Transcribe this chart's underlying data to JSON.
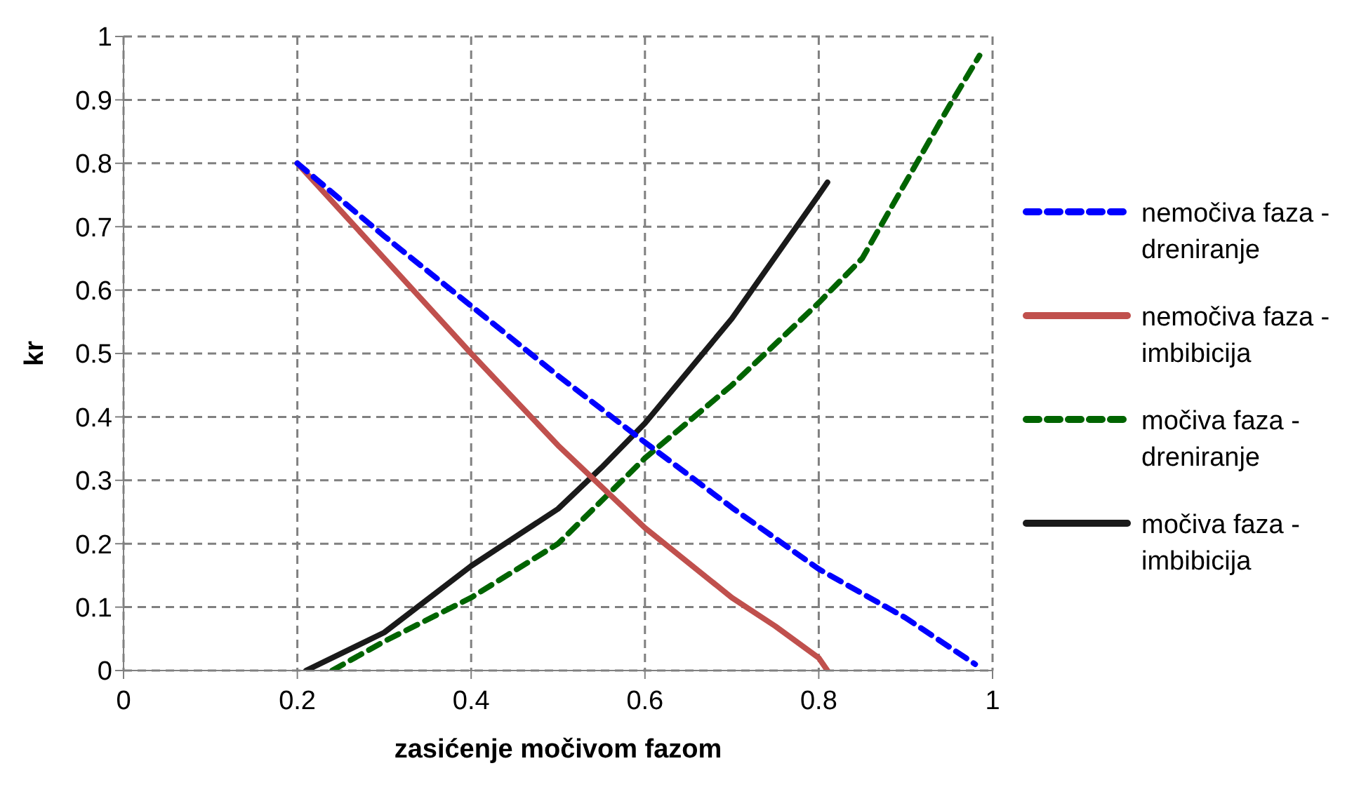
{
  "chart_data": {
    "type": "line",
    "xlabel": "zasićenje močivom fazom",
    "ylabel": "kr",
    "xlim": [
      0,
      1
    ],
    "xticks": [
      0,
      0.2,
      0.4,
      0.6,
      0.8,
      1
    ],
    "ylim": [
      0,
      1
    ],
    "yticks": [
      0,
      0.1,
      0.2,
      0.3,
      0.4,
      0.5,
      0.6,
      0.7,
      0.8,
      0.9,
      1
    ],
    "grid": true,
    "legend": "right",
    "marker": "none",
    "series": [
      {
        "name": "nemočiva faza - dreniranje",
        "color": "#0000ff",
        "line_style": "dashed",
        "x": [
          0.2,
          0.3,
          0.4,
          0.5,
          0.6,
          0.7,
          0.8,
          0.9,
          0.98
        ],
        "values": [
          0.8,
          0.685,
          0.575,
          0.465,
          0.36,
          0.257,
          0.16,
          0.083,
          0.01
        ]
      },
      {
        "name": "nemočiva faza - imbibicija",
        "color": "#c0504d",
        "line_style": "solid",
        "x": [
          0.2,
          0.3,
          0.4,
          0.5,
          0.6,
          0.7,
          0.75,
          0.8,
          0.81
        ],
        "values": [
          0.8,
          0.65,
          0.5,
          0.355,
          0.225,
          0.115,
          0.07,
          0.02,
          0
        ]
      },
      {
        "name": "močiva faza - dreniranje",
        "color": "#006400",
        "line_style": "dashed",
        "x": [
          0.24,
          0.3,
          0.4,
          0.5,
          0.6,
          0.7,
          0.8,
          0.85,
          0.9,
          0.95,
          0.985
        ],
        "values": [
          0,
          0.046,
          0.115,
          0.2,
          0.335,
          0.45,
          0.58,
          0.65,
          0.77,
          0.89,
          0.97
        ]
      },
      {
        "name": "močiva faza - imbibicija",
        "color": "#1a1a1a",
        "line_style": "solid",
        "x": [
          0.21,
          0.3,
          0.4,
          0.5,
          0.55,
          0.6,
          0.7,
          0.8,
          0.81
        ],
        "values": [
          0,
          0.06,
          0.165,
          0.255,
          0.32,
          0.39,
          0.555,
          0.75,
          0.77
        ]
      }
    ]
  }
}
